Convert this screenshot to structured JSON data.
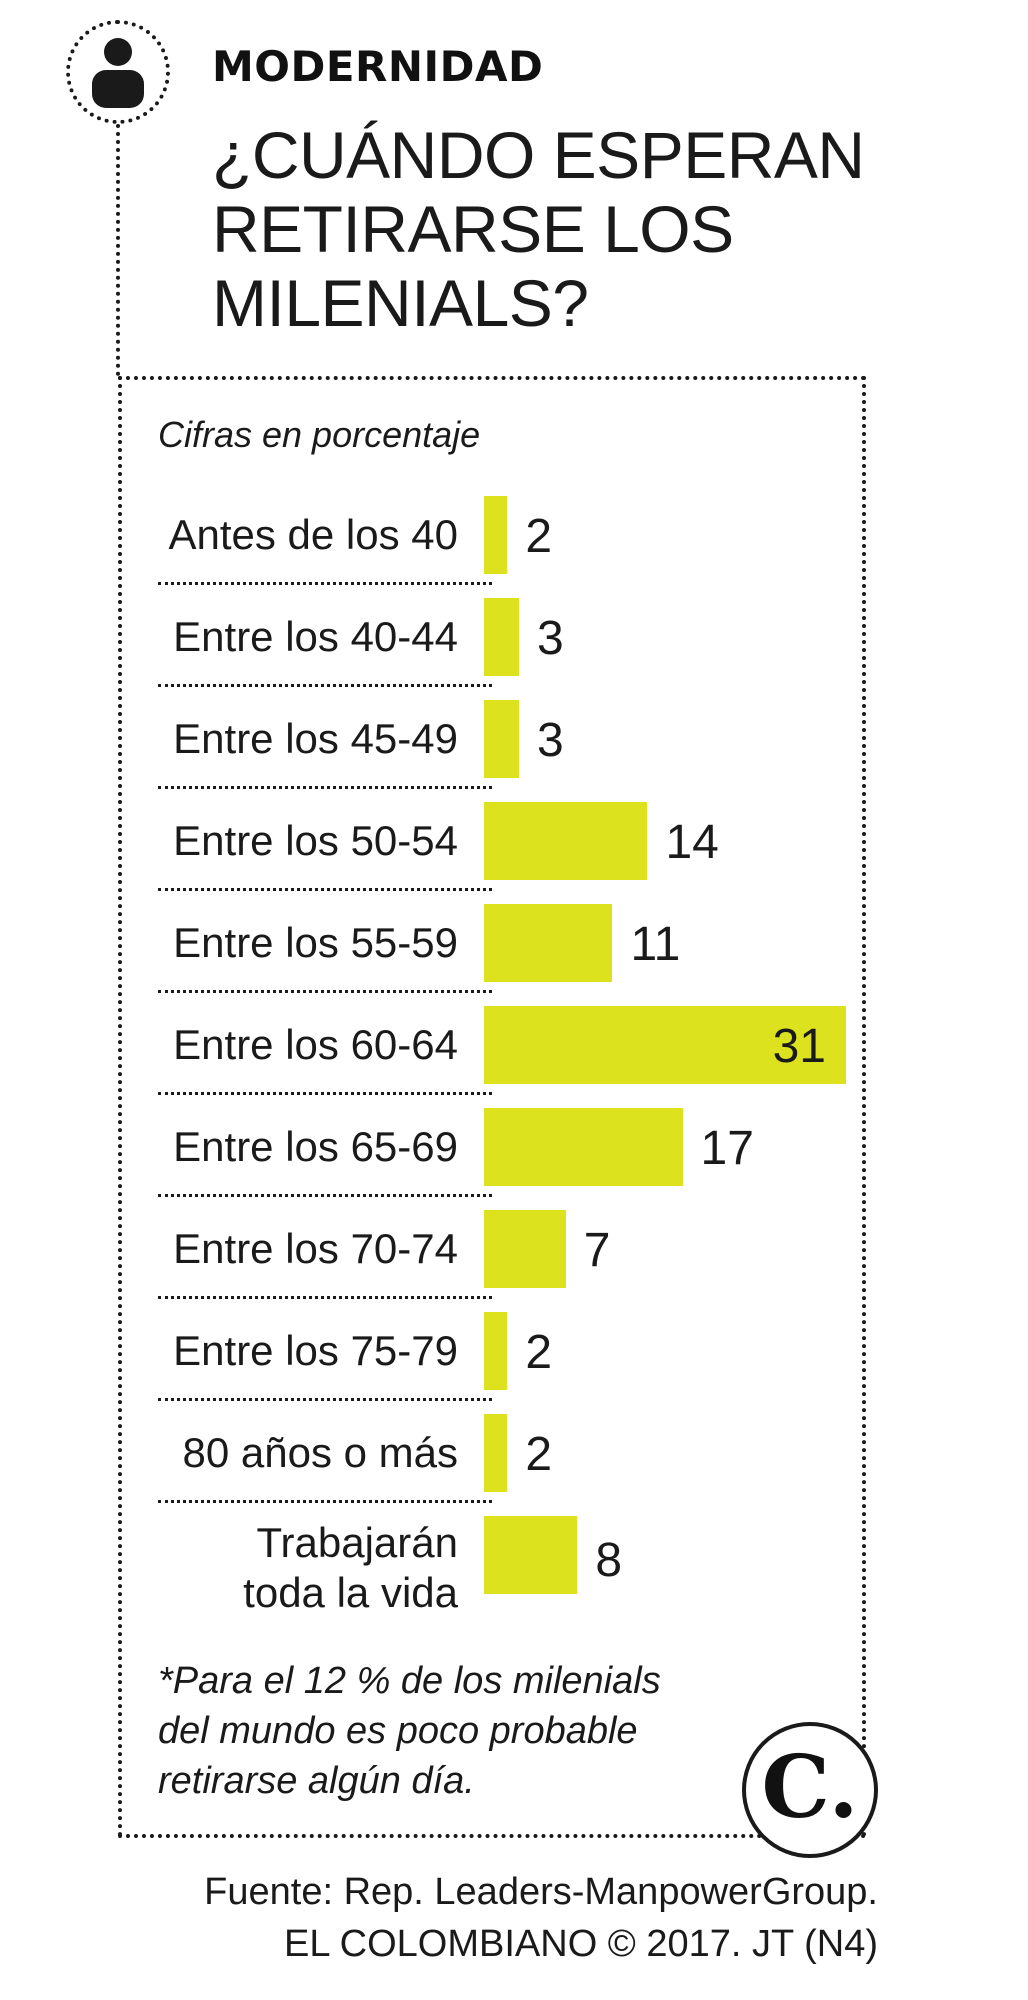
{
  "header": {
    "kicker": "MODERNIDAD",
    "title": "¿CUÁNDO ESPERAN RETIRARSE LOS MILENIALS?"
  },
  "colors": {
    "bar": "#dde21e",
    "text": "#1a1a1a"
  },
  "chart_data": {
    "type": "bar",
    "orientation": "horizontal",
    "note": "Cifras en porcentaje",
    "categories": [
      "Antes de los 40",
      "Entre los 40-44",
      "Entre los 45-49",
      "Entre los 50-54",
      "Entre los 55-59",
      "Entre los 60-64",
      "Entre los 65-69",
      "Entre los 70-74",
      "Entre los 75-79",
      "80 años o más",
      "Trabajarán toda la vida"
    ],
    "values": [
      2,
      3,
      3,
      14,
      11,
      31,
      17,
      7,
      2,
      2,
      8
    ],
    "xlim": [
      0,
      31
    ],
    "grid": false,
    "legend": "none"
  },
  "footnote": "*Para el 12 % de los milenials del mundo es poco probable retirarse algún día.",
  "logo": {
    "text": "C."
  },
  "source": {
    "line1": "Fuente: Rep. Leaders-ManpowerGroup.",
    "line2": "EL COLOMBIANO © 2017. JT (N4)"
  }
}
